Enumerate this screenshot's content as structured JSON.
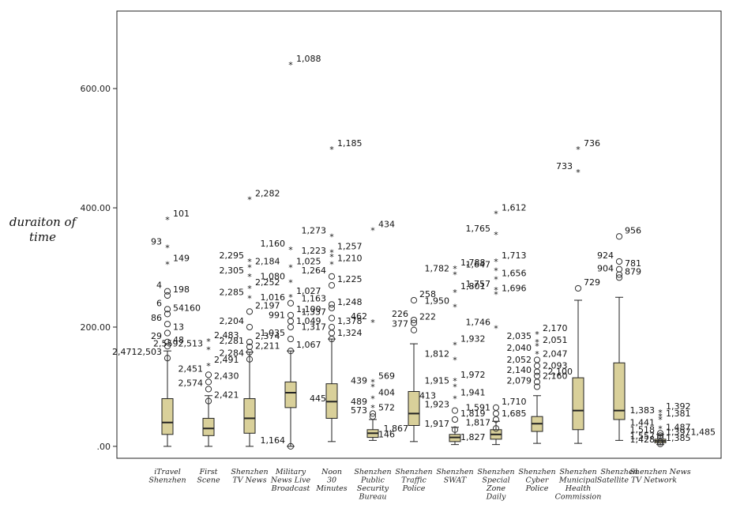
{
  "chart_data": {
    "type": "boxplot",
    "ylabel": "duraiton of time",
    "ylim": [
      -20,
      730
    ],
    "y_ticks": [
      ".00",
      "200.00",
      "400.00",
      "600.00"
    ],
    "y_tick_values": [
      0,
      200,
      400,
      600
    ],
    "grid": false,
    "categories": [
      {
        "label": [
          "iTravel",
          "Shenzhen"
        ]
      },
      {
        "label": [
          "First",
          "Scene"
        ]
      },
      {
        "label": [
          "Shenzhen",
          "TV News"
        ]
      },
      {
        "label": [
          "Military",
          "News Live",
          "Broadcast"
        ]
      },
      {
        "label": [
          "Noon",
          "30",
          "Minutes"
        ]
      },
      {
        "label": [
          "Shenzhen",
          "Public",
          "Security",
          "Bureau"
        ]
      },
      {
        "label": [
          "Shenzhen",
          "Traffic",
          "Police"
        ]
      },
      {
        "label": [
          "Shenzhen",
          "SWAT"
        ]
      },
      {
        "label": [
          "Shenzhen",
          "Special",
          "Zone",
          "Daily"
        ]
      },
      {
        "label": [
          "Shenzhen",
          "Cyber",
          "Police"
        ]
      },
      {
        "label": [
          "Shenzhen",
          "Municipal",
          "Health",
          "Commission"
        ]
      },
      {
        "label": [
          "Shenzhen",
          "Satellite TV"
        ]
      },
      {
        "label": [
          "Shenzhen News",
          "Network"
        ]
      }
    ],
    "boxes": [
      {
        "min": 0,
        "q1": 20,
        "median": 40,
        "q3": 80,
        "max": 160,
        "outliers": [
          {
            "y": 380,
            "shape": "star",
            "label": "101"
          },
          {
            "y": 333,
            "shape": "star",
            "label": "93"
          },
          {
            "y": 305,
            "shape": "star",
            "label": "149"
          },
          {
            "y": 260,
            "shape": "circle",
            "label": "4"
          },
          {
            "y": 253,
            "shape": "circle",
            "label": "198"
          },
          {
            "y": 230,
            "shape": "circle",
            "label": "6"
          },
          {
            "y": 222,
            "shape": "circle",
            "label": "54160"
          },
          {
            "y": 205,
            "shape": "circle",
            "label": "86"
          },
          {
            "y": 190,
            "shape": "circle",
            "label": "13"
          },
          {
            "y": 175,
            "shape": "circle",
            "label": "29"
          },
          {
            "y": 168,
            "shape": "circle",
            "label": "48"
          },
          {
            "y": 148,
            "shape": "circle",
            "label": "2,4712,503"
          }
        ]
      },
      {
        "min": 0,
        "q1": 18,
        "median": 30,
        "q3": 47,
        "max": 85,
        "outliers": [
          {
            "y": 176,
            "shape": "star",
            "label": "2,483"
          },
          {
            "y": 162,
            "shape": "star",
            "label": "2,5592,513"
          },
          {
            "y": 135,
            "shape": "star",
            "label": "2,491"
          },
          {
            "y": 120,
            "shape": "circle",
            "label": "2,451"
          },
          {
            "y": 108,
            "shape": "circle",
            "label": "2,430"
          },
          {
            "y": 96,
            "shape": "circle",
            "label": "2,574"
          },
          {
            "y": 76,
            "shape": "circle",
            "label": "2,421"
          }
        ]
      },
      {
        "min": 0,
        "q1": 22,
        "median": 47,
        "q3": 80,
        "max": 158,
        "outliers": [
          {
            "y": 414,
            "shape": "star",
            "label": "2,282"
          },
          {
            "y": 310,
            "shape": "star",
            "label": "2,295"
          },
          {
            "y": 300,
            "shape": "star",
            "label": "2,184"
          },
          {
            "y": 285,
            "shape": "star",
            "label": "2,305"
          },
          {
            "y": 265,
            "shape": "star",
            "label": "2,252"
          },
          {
            "y": 248,
            "shape": "star",
            "label": "2,285"
          },
          {
            "y": 226,
            "shape": "circle",
            "label": "2,197"
          },
          {
            "y": 200,
            "shape": "circle",
            "label": "2,204"
          },
          {
            "y": 175,
            "shape": "circle",
            "label": "2,374"
          },
          {
            "y": 167,
            "shape": "circle",
            "label": "2,281"
          },
          {
            "y": 158,
            "shape": "circle",
            "label": "2,211"
          },
          {
            "y": 146,
            "shape": "circle",
            "label": "2,284"
          }
        ]
      },
      {
        "min": 0,
        "q1": 65,
        "median": 90,
        "q3": 108,
        "max": 160,
        "outliers": [
          {
            "y": 640,
            "shape": "star",
            "label": "1,088"
          },
          {
            "y": 330,
            "shape": "star",
            "label": "1,160"
          },
          {
            "y": 300,
            "shape": "star",
            "label": "1,025"
          },
          {
            "y": 275,
            "shape": "star",
            "label": "1,080"
          },
          {
            "y": 250,
            "shape": "star",
            "label": "1,027"
          },
          {
            "y": 240,
            "shape": "circle",
            "label": "1,016"
          },
          {
            "y": 220,
            "shape": "circle",
            "label": "1,100"
          },
          {
            "y": 210,
            "shape": "circle",
            "label": "991"
          },
          {
            "y": 200,
            "shape": "circle",
            "label": "1,049"
          },
          {
            "y": 180,
            "shape": "circle",
            "label": "1,035"
          },
          {
            "y": 160,
            "shape": "circle",
            "label": "1,067"
          },
          {
            "y": 0,
            "shape": "circle",
            "label": "1,164"
          }
        ]
      },
      {
        "min": 8,
        "q1": 47,
        "median": 75,
        "q3": 105,
        "max": 180,
        "outliers": [
          {
            "y": 498,
            "shape": "star",
            "label": "1,185"
          },
          {
            "y": 352,
            "shape": "star",
            "label": "1,273"
          },
          {
            "y": 325,
            "shape": "star",
            "label": "1,257"
          },
          {
            "y": 318,
            "shape": "star",
            "label": "1,223"
          },
          {
            "y": 305,
            "shape": "star",
            "label": "1,210"
          },
          {
            "y": 285,
            "shape": "circle",
            "label": "1,264"
          },
          {
            "y": 270,
            "shape": "circle",
            "label": "1,225"
          },
          {
            "y": 238,
            "shape": "circle",
            "label": "1,163"
          },
          {
            "y": 232,
            "shape": "circle",
            "label": "1,248"
          },
          {
            "y": 215,
            "shape": "circle",
            "label": "1,337"
          },
          {
            "y": 200,
            "shape": "circle",
            "label": "1,378"
          },
          {
            "y": 190,
            "shape": "circle",
            "label": "1,317"
          },
          {
            "y": 180,
            "shape": "circle",
            "label": "1,324"
          },
          {
            "y": 70,
            "shape": "none",
            "label": "445"
          }
        ]
      },
      {
        "min": 10,
        "q1": 15,
        "median": 22,
        "q3": 28,
        "max": 45,
        "outliers": [
          {
            "y": 362,
            "shape": "star",
            "label": "434"
          },
          {
            "y": 208,
            "shape": "star",
            "label": "462"
          },
          {
            "y": 108,
            "shape": "star",
            "label": "569"
          },
          {
            "y": 100,
            "shape": "star",
            "label": "439"
          },
          {
            "y": 80,
            "shape": "star",
            "label": "404"
          },
          {
            "y": 65,
            "shape": "star",
            "label": "489"
          },
          {
            "y": 55,
            "shape": "circle",
            "label": "572"
          },
          {
            "y": 50,
            "shape": "circle",
            "label": "573"
          },
          {
            "y": 10,
            "shape": "none",
            "label": "146"
          }
        ]
      },
      {
        "min": 8,
        "q1": 35,
        "median": 55,
        "q3": 92,
        "max": 172,
        "outliers": [
          {
            "y": 245,
            "shape": "circle",
            "label": "258"
          },
          {
            "y": 212,
            "shape": "circle",
            "label": "226"
          },
          {
            "y": 207,
            "shape": "circle",
            "label": "222"
          },
          {
            "y": 195,
            "shape": "circle",
            "label": "377"
          },
          {
            "y": 75,
            "shape": "none",
            "label": "413"
          },
          {
            "y": 20,
            "shape": "none",
            "label": "1,867"
          }
        ]
      },
      {
        "min": 3,
        "q1": 8,
        "median": 15,
        "q3": 20,
        "max": 32,
        "outliers": [
          {
            "y": 298,
            "shape": "star",
            "label": "1,788"
          },
          {
            "y": 288,
            "shape": "star",
            "label": "1,782"
          },
          {
            "y": 258,
            "shape": "star",
            "label": "1,801"
          },
          {
            "y": 234,
            "shape": "star",
            "label": "1,950"
          },
          {
            "y": 170,
            "shape": "star",
            "label": "1,932"
          },
          {
            "y": 145,
            "shape": "star",
            "label": "1,812"
          },
          {
            "y": 110,
            "shape": "star",
            "label": "1,972"
          },
          {
            "y": 100,
            "shape": "star",
            "label": "1,915"
          },
          {
            "y": 80,
            "shape": "star",
            "label": "1,941"
          },
          {
            "y": 60,
            "shape": "circle",
            "label": "1,923"
          },
          {
            "y": 45,
            "shape": "circle",
            "label": "1,819"
          },
          {
            "y": 28,
            "shape": "circle",
            "label": "1,917"
          },
          {
            "y": 5,
            "shape": "none",
            "label": "1,827"
          }
        ]
      },
      {
        "min": 3,
        "q1": 12,
        "median": 20,
        "q3": 28,
        "max": 42,
        "outliers": [
          {
            "y": 390,
            "shape": "star",
            "label": "1,612"
          },
          {
            "y": 355,
            "shape": "star",
            "label": "1,765"
          },
          {
            "y": 310,
            "shape": "star",
            "label": "1,713"
          },
          {
            "y": 295,
            "shape": "star",
            "label": "1,647"
          },
          {
            "y": 280,
            "shape": "star",
            "label": "1,656"
          },
          {
            "y": 262,
            "shape": "star",
            "label": "1,757"
          },
          {
            "y": 255,
            "shape": "star",
            "label": "1,696"
          },
          {
            "y": 198,
            "shape": "star",
            "label": "1,746"
          },
          {
            "y": 65,
            "shape": "circle",
            "label": "1,710"
          },
          {
            "y": 55,
            "shape": "circle",
            "label": "1,591"
          },
          {
            "y": 45,
            "shape": "circle",
            "label": "1,685"
          },
          {
            "y": 30,
            "shape": "circle",
            "label": "1,817"
          }
        ]
      },
      {
        "min": 5,
        "q1": 25,
        "median": 38,
        "q3": 50,
        "max": 85,
        "outliers": [
          {
            "y": 188,
            "shape": "star",
            "label": "2,170"
          },
          {
            "y": 175,
            "shape": "star",
            "label": "2,035"
          },
          {
            "y": 168,
            "shape": "star",
            "label": "2,051"
          },
          {
            "y": 155,
            "shape": "star",
            "label": "2,040"
          },
          {
            "y": 145,
            "shape": "circle",
            "label": "2,047"
          },
          {
            "y": 135,
            "shape": "circle",
            "label": "2,052"
          },
          {
            "y": 125,
            "shape": "circle",
            "label": "2,093"
          },
          {
            "y": 118,
            "shape": "circle",
            "label": "2,140"
          },
          {
            "y": 108,
            "shape": "circle",
            "label": "2,160"
          },
          {
            "y": 100,
            "shape": "circle",
            "label": "2,079"
          }
        ]
      },
      {
        "min": 5,
        "q1": 28,
        "median": 60,
        "q3": 115,
        "max": 245,
        "outliers": [
          {
            "y": 498,
            "shape": "star",
            "label": "736"
          },
          {
            "y": 460,
            "shape": "star",
            "label": "733"
          },
          {
            "y": 265,
            "shape": "circle",
            "label": "729"
          },
          {
            "y": 115,
            "shape": "none",
            "label": "2,100"
          }
        ]
      },
      {
        "min": 10,
        "q1": 45,
        "median": 60,
        "q3": 140,
        "max": 250,
        "outliers": [
          {
            "y": 352,
            "shape": "circle",
            "label": "956"
          },
          {
            "y": 310,
            "shape": "circle",
            "label": "924"
          },
          {
            "y": 297,
            "shape": "circle",
            "label": "781"
          },
          {
            "y": 288,
            "shape": "circle",
            "label": "904"
          },
          {
            "y": 283,
            "shape": "circle",
            "label": "879"
          }
        ]
      },
      {
        "min": 3,
        "q1": 6,
        "median": 9,
        "q3": 12,
        "max": 20,
        "outliers": [
          {
            "y": 57,
            "shape": "star",
            "label": "1,392"
          },
          {
            "y": 50,
            "shape": "star",
            "label": "1,383"
          },
          {
            "y": 45,
            "shape": "star",
            "label": "1,381"
          },
          {
            "y": 30,
            "shape": "star",
            "label": "1,441"
          },
          {
            "y": 22,
            "shape": "circle",
            "label": "1,487"
          },
          {
            "y": 18,
            "shape": "circle",
            "label": "1,518"
          },
          {
            "y": 14,
            "shape": "circle",
            "label": "1,3971,485"
          },
          {
            "y": 7,
            "shape": "circle",
            "label": "1,557"
          },
          {
            "y": 4,
            "shape": "circle",
            "label": "1,385"
          },
          {
            "y": 1,
            "shape": "none",
            "label": "1,428"
          }
        ]
      }
    ],
    "box_color": "#d9d09a",
    "box_edge_color": "#222222",
    "median_color": "#222222"
  }
}
